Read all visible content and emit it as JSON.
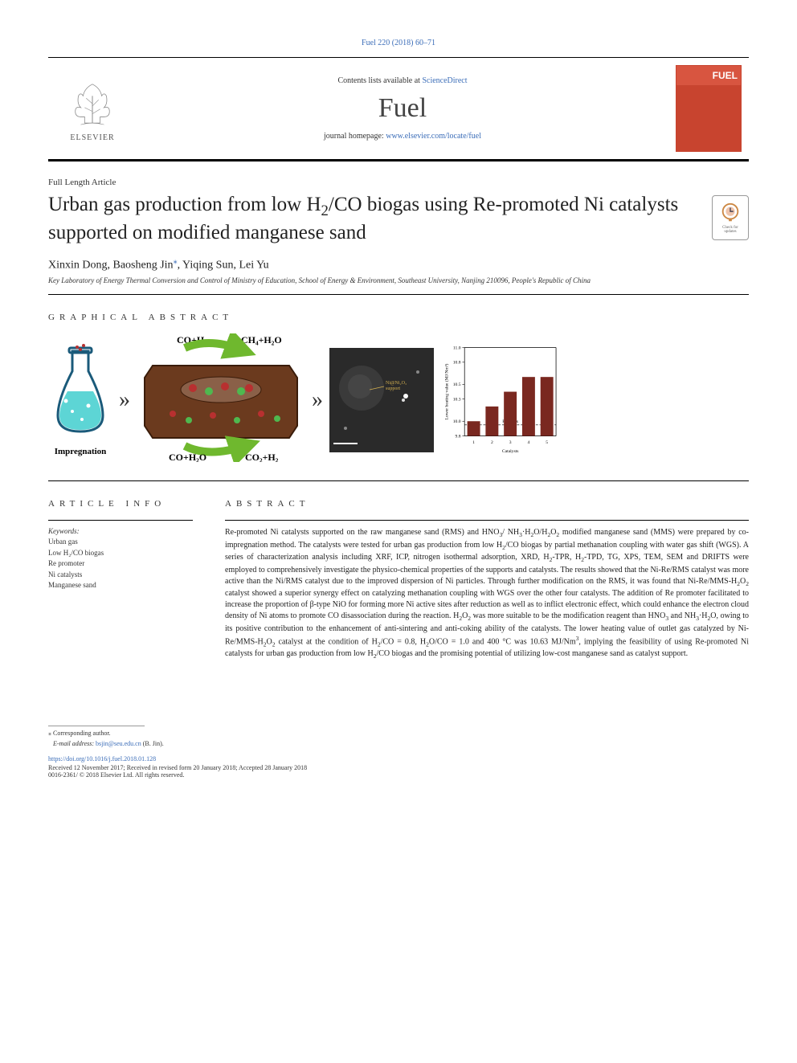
{
  "top_link": "Fuel 220 (2018) 60–71",
  "header": {
    "contents_prefix": "Contents lists available at ",
    "contents_link": "ScienceDirect",
    "journal": "Fuel",
    "homepage_prefix": "journal homepage: ",
    "homepage_url": "www.elsevier.com/locate/fuel",
    "publisher_label": "ELSEVIER",
    "cover_title": "FUEL",
    "cover_sub": ""
  },
  "article": {
    "type": "Full Length Article",
    "title_html": "Urban gas production from low H<sub>2</sub>/CO biogas using Re-promoted Ni catalysts supported on modified manganese sand",
    "check_badge": "Check for updates",
    "authors_html": "Xinxin Dong, Baosheng Jin<span class=\"corr\">⁎</span>, Yiqing Sun, Lei Yu",
    "affiliation": "Key Laboratory of Energy Thermal Conversion and Control of Ministry of Education, School of Energy & Environment, Southeast University, Nanjing 210096, People's Republic of China"
  },
  "sections": {
    "graphical": "GRAPHICAL ABSTRACT",
    "info": "ARTICLE INFO",
    "abstract": "ABSTRACT"
  },
  "graphical": {
    "impregnation_label": "Impregnation",
    "reactions": {
      "r1": "CO+H₂",
      "r2": "CH₄+H₂O",
      "r3": "CO+H₂O",
      "r4": "CO₂+H₂"
    },
    "tem_label": "",
    "chart": {
      "type": "bar",
      "ylabel": "Lower heating value (MJ/Nm³)",
      "xlabel": "Catalysts",
      "xticks": [
        "1",
        "2",
        "3",
        "4",
        "5"
      ],
      "values": [
        10.0,
        10.2,
        10.4,
        10.6,
        10.6
      ],
      "feed_gas": 9.95,
      "feed_gas_label": "Feed gas",
      "ylim": [
        9.8,
        11.0
      ],
      "yticks": [
        9.8,
        10.0,
        10.3,
        10.5,
        10.8,
        11.0
      ],
      "bar_color": "#7a2820",
      "bg": "#ffffff",
      "axis_color": "#000000",
      "font_size": 6
    },
    "colors": {
      "flask_liquid": "#5dd5d5",
      "flask_outline": "#1a5a7a",
      "diagram_bg": "#6b3a1e",
      "diagram_border": "#3a1c0a",
      "arrow_green": "#6fb82e",
      "dot_red": "#b83030",
      "dot_green": "#4fb84f"
    }
  },
  "keywords": {
    "head": "Keywords:",
    "items": [
      "Urban gas",
      "Low H₂/CO biogas",
      "Re promoter",
      "Ni catalysts",
      "Manganese sand"
    ]
  },
  "abstract_html": "Re-promoted Ni catalysts supported on the raw manganese sand (RMS) and HNO<sub>3</sub>/ NH<sub>3</sub>·H<sub>2</sub>O/H<sub>2</sub>O<sub>2</sub> modified manganese sand (MMS) were prepared by co-impregnation method. The catalysts were tested for urban gas production from low H<sub>2</sub>/CO biogas by partial methanation coupling with water gas shift (WGS). A series of characterization analysis including XRF, ICP, nitrogen isothermal adsorption, XRD, H<sub>2</sub>-TPR, H<sub>2</sub>-TPD, TG, XPS, TEM, SEM and DRIFTS were employed to comprehensively investigate the physico-chemical properties of the supports and catalysts. The results showed that the Ni-Re/RMS catalyst was more active than the Ni/RMS catalyst due to the improved dispersion of Ni particles. Through further modification on the RMS, it was found that Ni-Re/MMS-H<sub>2</sub>O<sub>2</sub> catalyst showed a superior synergy effect on catalyzing methanation coupling with WGS over the other four catalysts. The addition of Re promoter facilitated to increase the proportion of β-type NiO for forming more Ni active sites after reduction as well as to inflict electronic effect, which could enhance the electron cloud density of Ni atoms to promote CO disassociation during the reaction. H<sub>2</sub>O<sub>2</sub> was more suitable to be the modification reagent than HNO<sub>3</sub> and NH<sub>3</sub>·H<sub>2</sub>O, owing to its positive contribution to the enhancement of anti-sintering and anti-coking ability of the catalysts. The lower heating value of outlet gas catalyzed by Ni-Re/MMS-H<sub>2</sub>O<sub>2</sub> catalyst at the condition of H<sub>2</sub>/CO = 0.8, H<sub>2</sub>O/CO = 1.0 and 400 °C was 10.63 MJ/Nm<sup>3</sup>, implying the feasibility of using Re-promoted Ni catalysts for urban gas production from low H<sub>2</sub>/CO biogas and the promising potential of utilizing low-cost manganese sand as catalyst support.",
  "footer": {
    "corr_label": "⁎ Corresponding author.",
    "email_label": "E-mail address: ",
    "email": "bsjin@seu.edu.cn",
    "email_suffix": " (B. Jin).",
    "doi": "https://doi.org/10.1016/j.fuel.2018.01.128",
    "history": "Received 12 November 2017; Received in revised form 20 January 2018; Accepted 28 January 2018",
    "copyright": "0016-2361/ © 2018 Elsevier Ltd. All rights reserved."
  }
}
